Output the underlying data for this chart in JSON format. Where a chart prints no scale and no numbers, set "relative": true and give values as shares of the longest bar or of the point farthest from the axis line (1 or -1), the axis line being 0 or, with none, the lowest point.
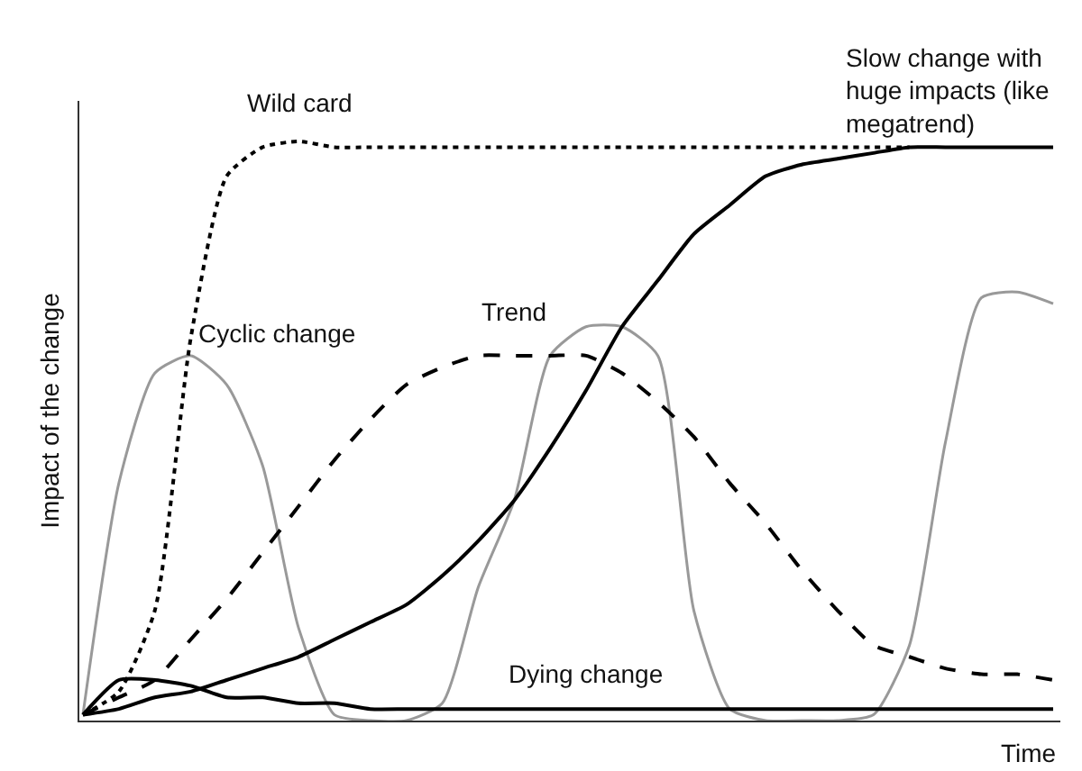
{
  "chart_data": {
    "type": "line",
    "relative": true,
    "xlabel": "Time",
    "ylabel": "Impact of the change",
    "legend": false,
    "grid": false,
    "marker": "none",
    "categories": [
      null,
      null,
      null,
      null,
      null,
      null,
      null,
      null,
      null,
      null,
      null,
      null,
      null,
      null,
      null,
      null,
      null,
      null,
      null,
      null,
      null,
      null,
      null,
      null,
      null,
      null,
      null,
      null
    ],
    "series": [
      {
        "name": "Cyclic change",
        "color": "#999999",
        "line_style": "solid",
        "values": [
          0.01,
          0.41,
          0.6,
          0.63,
          0.58,
          0.44,
          0.16,
          0.01,
          0.0,
          0.0,
          0.03,
          0.23,
          0.38,
          0.63,
          0.68,
          0.68,
          0.63,
          0.19,
          0.02,
          0.0,
          0.0,
          0.0,
          0.01,
          0.13,
          0.48,
          0.73,
          0.74,
          0.72
        ]
      },
      {
        "name": "Wild card",
        "color": "#000000",
        "line_style": "dotted",
        "values": [
          0.01,
          0.05,
          0.19,
          0.66,
          0.94,
          0.99,
          1.0,
          0.99,
          0.99,
          0.99,
          0.99,
          0.99,
          0.99,
          0.99,
          0.99,
          0.99,
          0.99,
          0.99,
          0.99,
          0.99,
          0.99,
          0.99,
          0.99,
          0.99,
          null,
          null,
          null,
          null
        ]
      },
      {
        "name": "Trend",
        "color": "#000000",
        "line_style": "dashed",
        "values": [
          0.01,
          0.04,
          0.07,
          0.14,
          0.21,
          0.29,
          0.37,
          0.45,
          0.52,
          0.58,
          0.61,
          0.63,
          0.63,
          0.63,
          0.63,
          0.6,
          0.55,
          0.49,
          0.41,
          0.34,
          0.26,
          0.19,
          0.13,
          0.11,
          0.09,
          0.08,
          0.08,
          0.07
        ]
      },
      {
        "name": "Slow change with huge impacts (like megatrend)",
        "color": "#000000",
        "line_style": "solid",
        "values": [
          0.01,
          0.02,
          0.04,
          0.05,
          0.07,
          0.09,
          0.11,
          0.14,
          0.17,
          0.2,
          0.25,
          0.31,
          0.38,
          0.47,
          0.57,
          0.68,
          0.76,
          0.84,
          0.89,
          0.94,
          0.96,
          0.97,
          0.98,
          0.99,
          0.99,
          0.99,
          0.99,
          0.99
        ]
      },
      {
        "name": "Dying change",
        "color": "#000000",
        "line_style": "solid",
        "values": [
          0.01,
          0.07,
          0.07,
          0.06,
          0.04,
          0.04,
          0.03,
          0.03,
          0.02,
          0.02,
          0.02,
          0.02,
          0.02,
          0.02,
          0.02,
          0.02,
          0.02,
          0.02,
          0.02,
          0.02,
          0.02,
          0.02,
          0.02,
          0.02,
          0.02,
          0.02,
          0.02,
          0.02
        ]
      }
    ]
  }
}
